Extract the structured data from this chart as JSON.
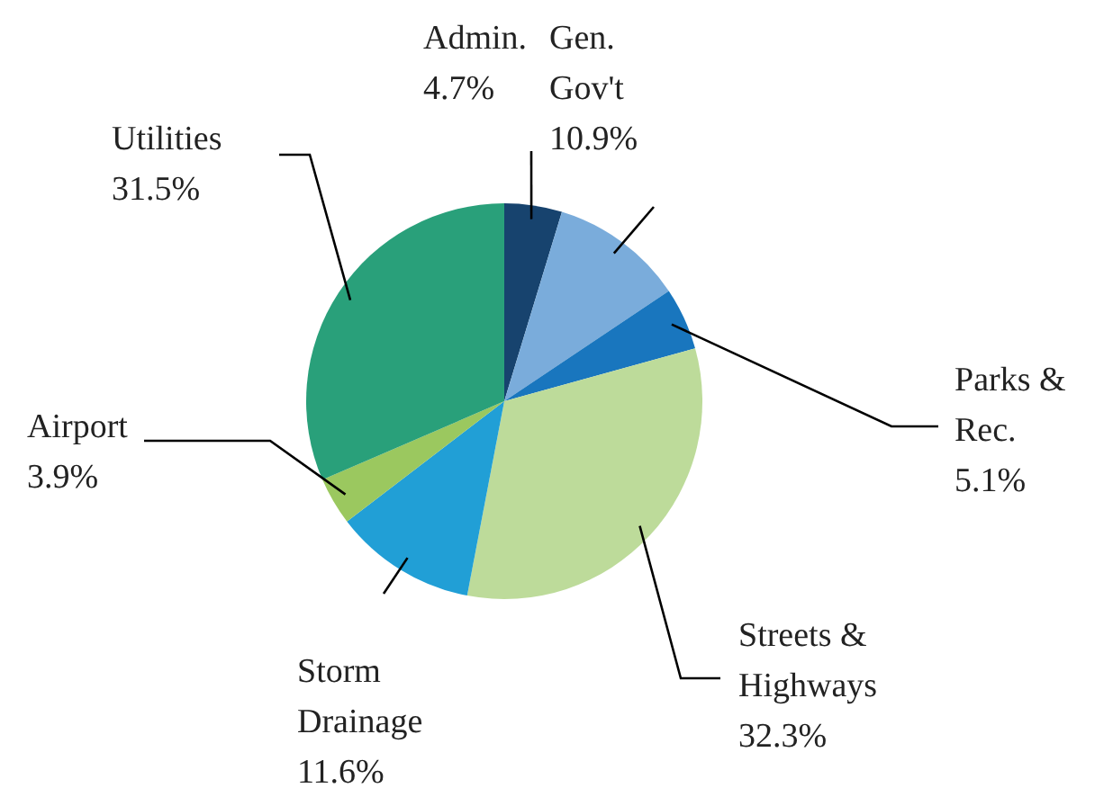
{
  "chart_data": {
    "type": "pie",
    "categories": [
      "Admin.",
      "Gen. Gov't",
      "Parks & Rec.",
      "Streets & Highways",
      "Storm Drainage",
      "Airport",
      "Utilities"
    ],
    "values": [
      4.7,
      10.9,
      5.1,
      32.3,
      11.6,
      3.9,
      31.5
    ],
    "colors": [
      "#17436e",
      "#7aacdb",
      "#1976be",
      "#bddb9a",
      "#219fd6",
      "#9bc85f",
      "#29a07a"
    ],
    "value_labels": [
      "4.7%",
      "10.9%",
      "5.1%",
      "32.3%",
      "11.6%",
      "3.9%",
      "31.5%"
    ]
  }
}
